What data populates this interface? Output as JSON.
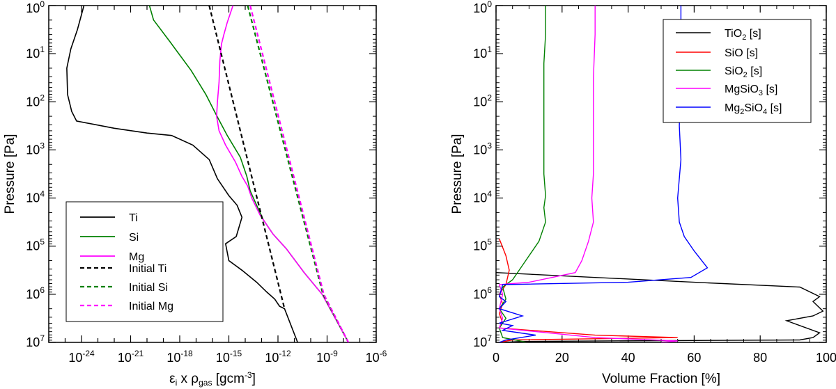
{
  "chart_data": [
    {
      "id": "left",
      "type": "line",
      "xscale": "log",
      "yscale": "log",
      "yinverted": true,
      "xlim_exp": [
        -26,
        -6
      ],
      "ylim_exp": [
        0,
        7
      ],
      "xlabel": {
        "main": "ε",
        "sub1": "i",
        "mid": " x ρ",
        "sub2": "gas",
        "unit": " [gcm",
        "sup": "-3",
        "close": "]"
      },
      "ylabel": "Pressure [Pa]",
      "xticks": [
        {
          "base": "10",
          "exp": "-24",
          "value_exp": -24
        },
        {
          "base": "10",
          "exp": "-21",
          "value_exp": -21
        },
        {
          "base": "10",
          "exp": "-18",
          "value_exp": -18
        },
        {
          "base": "10",
          "exp": "-15",
          "value_exp": -15
        },
        {
          "base": "10",
          "exp": "-12",
          "value_exp": -12
        },
        {
          "base": "10",
          "exp": "-9",
          "value_exp": -9
        },
        {
          "base": "10",
          "exp": "-6",
          "value_exp": -6
        }
      ],
      "yticks": [
        {
          "base": "10",
          "exp": "0",
          "value_exp": 0
        },
        {
          "base": "10",
          "exp": "1",
          "value_exp": 1
        },
        {
          "base": "10",
          "exp": "2",
          "value_exp": 2
        },
        {
          "base": "10",
          "exp": "3",
          "value_exp": 3
        },
        {
          "base": "10",
          "exp": "4",
          "value_exp": 4
        },
        {
          "base": "10",
          "exp": "5",
          "value_exp": 5
        },
        {
          "base": "10",
          "exp": "6",
          "value_exp": 6
        },
        {
          "base": "10",
          "exp": "7",
          "value_exp": 7
        }
      ],
      "legend_position": "bottom-left",
      "series": [
        {
          "name": "Ti",
          "color": "#000000",
          "dash": false,
          "points_log": [
            [
              -23.85,
              0.0
            ],
            [
              -24.25,
              0.5
            ],
            [
              -24.65,
              0.9
            ],
            [
              -24.9,
              1.3
            ],
            [
              -24.85,
              1.85
            ],
            [
              -24.6,
              2.2
            ],
            [
              -24.3,
              2.4
            ],
            [
              -22.0,
              2.55
            ],
            [
              -20.0,
              2.65
            ],
            [
              -18.5,
              2.7
            ],
            [
              -17.2,
              2.9
            ],
            [
              -16.2,
              3.2
            ],
            [
              -15.7,
              3.6
            ],
            [
              -15.0,
              3.95
            ],
            [
              -14.5,
              4.15
            ],
            [
              -14.2,
              4.4
            ],
            [
              -14.55,
              4.8
            ],
            [
              -15.2,
              4.95
            ],
            [
              -15.0,
              5.3
            ],
            [
              -14.2,
              5.5
            ],
            [
              -13.3,
              5.75
            ],
            [
              -12.7,
              5.95
            ],
            [
              -12.2,
              6.1
            ],
            [
              -11.9,
              6.25
            ],
            [
              -11.6,
              6.3
            ],
            [
              -10.8,
              7.0
            ]
          ]
        },
        {
          "name": "Si",
          "color": "#008000",
          "dash": false,
          "points_log": [
            [
              -19.85,
              0.0
            ],
            [
              -19.6,
              0.3
            ],
            [
              -18.6,
              0.75
            ],
            [
              -17.3,
              1.35
            ],
            [
              -16.4,
              1.85
            ],
            [
              -15.8,
              2.25
            ],
            [
              -15.1,
              2.7
            ],
            [
              -14.3,
              3.15
            ],
            [
              -13.9,
              3.55
            ],
            [
              -13.7,
              3.85
            ],
            [
              -13.3,
              4.15
            ],
            [
              -12.9,
              4.45
            ],
            [
              -12.3,
              4.75
            ],
            [
              -11.5,
              5.05
            ],
            [
              -10.4,
              5.55
            ],
            [
              -9.3,
              6.0
            ],
            [
              -7.7,
              7.0
            ]
          ]
        },
        {
          "name": "Mg",
          "color": "#FF00FF",
          "dash": false,
          "points_log": [
            [
              -14.75,
              0.0
            ],
            [
              -15.1,
              0.35
            ],
            [
              -15.3,
              0.6
            ],
            [
              -15.45,
              0.8
            ],
            [
              -15.55,
              1.15
            ],
            [
              -15.6,
              1.6
            ],
            [
              -15.7,
              2.0
            ],
            [
              -15.75,
              2.3
            ],
            [
              -15.6,
              2.6
            ],
            [
              -15.2,
              2.9
            ],
            [
              -14.6,
              3.25
            ],
            [
              -14.2,
              3.55
            ],
            [
              -13.85,
              3.75
            ],
            [
              -13.6,
              4.0
            ],
            [
              -13.1,
              4.35
            ],
            [
              -12.3,
              4.75
            ],
            [
              -11.5,
              5.05
            ],
            [
              -10.4,
              5.55
            ],
            [
              -9.3,
              6.0
            ],
            [
              -7.7,
              7.0
            ]
          ]
        },
        {
          "name": "Initial Ti",
          "color": "#000000",
          "dash": true,
          "points_log": [
            [
              -16.2,
              0.0
            ],
            [
              -11.6,
              6.3
            ]
          ]
        },
        {
          "name": "Initial Si",
          "color": "#008000",
          "dash": true,
          "points_log": [
            [
              -13.85,
              0.0
            ],
            [
              -9.25,
              6.0
            ],
            [
              -7.7,
              7.0
            ]
          ]
        },
        {
          "name": "Initial Mg",
          "color": "#FF00FF",
          "dash": true,
          "points_log": [
            [
              -13.7,
              0.0
            ],
            [
              -9.2,
              6.0
            ],
            [
              -7.7,
              7.0
            ]
          ]
        }
      ],
      "legend": [
        "Ti",
        "Si",
        "Mg",
        "Initial Ti",
        "Initial Si",
        "Initial Mg"
      ]
    },
    {
      "id": "right",
      "type": "line",
      "xscale": "linear",
      "yscale": "log",
      "yinverted": true,
      "xlim": [
        0,
        100
      ],
      "ylim_exp": [
        0,
        7
      ],
      "xlabel": "Volume Fraction [%]",
      "ylabel": "Pressure [Pa]",
      "xticks": [
        "0",
        "20",
        "40",
        "60",
        "80",
        "100"
      ],
      "yticks": [
        {
          "base": "10",
          "exp": "0",
          "value_exp": 0
        },
        {
          "base": "10",
          "exp": "1",
          "value_exp": 1
        },
        {
          "base": "10",
          "exp": "2",
          "value_exp": 2
        },
        {
          "base": "10",
          "exp": "3",
          "value_exp": 3
        },
        {
          "base": "10",
          "exp": "4",
          "value_exp": 4
        },
        {
          "base": "10",
          "exp": "5",
          "value_exp": 5
        },
        {
          "base": "10",
          "exp": "6",
          "value_exp": 6
        },
        {
          "base": "10",
          "exp": "7",
          "value_exp": 7
        }
      ],
      "legend_position": "top-right",
      "series": [
        {
          "name": "TiO2 [s]",
          "label_main": "TiO",
          "label_sub": "2",
          "label_tail": " [s]",
          "color": "#000000",
          "points": [
            [
              0,
              5.55
            ],
            [
              60,
              5.75
            ],
            [
              92,
              5.85
            ],
            [
              98,
              6.05
            ],
            [
              96,
              6.15
            ],
            [
              99,
              6.35
            ],
            [
              96,
              6.45
            ],
            [
              88,
              6.55
            ],
            [
              98,
              6.8
            ],
            [
              96,
              6.9
            ],
            [
              92,
              6.95
            ],
            [
              8,
              6.98
            ],
            [
              2,
              7.0
            ]
          ]
        },
        {
          "name": "SiO [s]",
          "label_main": "SiO",
          "label_sub": "",
          "label_tail": " [s]",
          "color": "#FF0000",
          "points": [
            [
              1,
              4.85
            ],
            [
              3,
              5.2
            ],
            [
              4,
              5.5
            ],
            [
              3,
              5.8
            ],
            [
              1,
              6.0
            ],
            [
              2,
              6.2
            ],
            [
              1,
              6.4
            ],
            [
              2,
              6.6
            ],
            [
              1,
              6.7
            ],
            [
              30,
              6.85
            ],
            [
              55,
              6.9
            ],
            [
              5,
              6.95
            ],
            [
              1,
              7.0
            ]
          ]
        },
        {
          "name": "SiO2 [s]",
          "label_main": "SiO",
          "label_sub": "2",
          "label_tail": " [s]",
          "color": "#008000",
          "points": [
            [
              15,
              0.0
            ],
            [
              15,
              0.6
            ],
            [
              14.5,
              1.2
            ],
            [
              14.5,
              2.0
            ],
            [
              14.5,
              3.5
            ],
            [
              15,
              3.95
            ],
            [
              14.5,
              4.2
            ],
            [
              15,
              4.5
            ],
            [
              13,
              4.9
            ],
            [
              8,
              5.4
            ],
            [
              5,
              5.7
            ],
            [
              2,
              5.85
            ],
            [
              3,
              6.1
            ],
            [
              1,
              6.3
            ],
            [
              3,
              6.5
            ],
            [
              1,
              6.7
            ],
            [
              2,
              6.9
            ],
            [
              8,
              6.98
            ],
            [
              9,
              7.0
            ]
          ]
        },
        {
          "name": "MgSiO3 [s]",
          "label_main": "MgSiO",
          "label_sub": "3",
          "label_tail": " [s]",
          "color": "#FF00FF",
          "points": [
            [
              30,
              0.0
            ],
            [
              30,
              0.6
            ],
            [
              29.5,
              1.5
            ],
            [
              29.5,
              2.6
            ],
            [
              29.5,
              3.5
            ],
            [
              29,
              4.0
            ],
            [
              29.5,
              4.5
            ],
            [
              28,
              4.9
            ],
            [
              26,
              5.3
            ],
            [
              24,
              5.55
            ],
            [
              10,
              5.75
            ],
            [
              1,
              5.8
            ],
            [
              2,
              6.0
            ],
            [
              1,
              6.3
            ],
            [
              2,
              6.5
            ],
            [
              1,
              6.7
            ],
            [
              30,
              6.9
            ],
            [
              55,
              6.97
            ],
            [
              50,
              7.0
            ]
          ]
        },
        {
          "name": "Mg2SiO4 [s]",
          "label_main": "Mg",
          "label_sub": "2",
          "label_mid": "SiO",
          "label_sub2": "4",
          "label_tail": " [s]",
          "color": "#0000FF",
          "points": [
            [
              56,
              0.0
            ],
            [
              56,
              0.5
            ],
            [
              56,
              1.5
            ],
            [
              55.5,
              2.5
            ],
            [
              56,
              3.2
            ],
            [
              55,
              4.0
            ],
            [
              55.5,
              4.5
            ],
            [
              57,
              4.8
            ],
            [
              60,
              5.1
            ],
            [
              64,
              5.45
            ],
            [
              59,
              5.65
            ],
            [
              40,
              5.75
            ],
            [
              2,
              5.8
            ],
            [
              1,
              6.05
            ],
            [
              3,
              6.15
            ],
            [
              1,
              6.3
            ],
            [
              8,
              6.45
            ],
            [
              1,
              6.6
            ],
            [
              5,
              6.65
            ],
            [
              2,
              6.75
            ],
            [
              12,
              6.85
            ],
            [
              3,
              6.95
            ],
            [
              1,
              7.0
            ]
          ]
        }
      ],
      "legend": [
        "TiO2 [s]",
        "SiO [s]",
        "SiO2 [s]",
        "MgSiO3 [s]",
        "Mg2SiO4 [s]"
      ]
    }
  ]
}
